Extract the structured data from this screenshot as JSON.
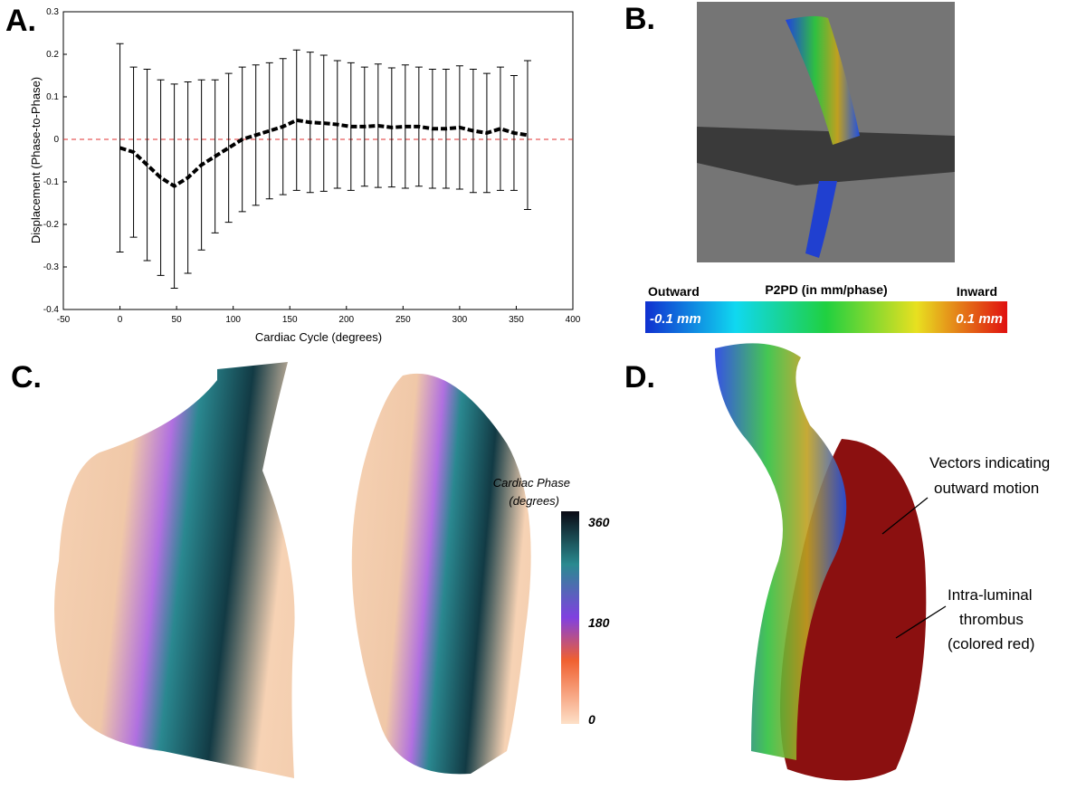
{
  "panel_labels": [
    "A.",
    "B.",
    "C.",
    "D."
  ],
  "chart_data": {
    "type": "line",
    "xlabel": "Cardiac Cycle (degrees)",
    "ylabel": "Displacement (Phase-to-Phase)",
    "x": [
      0,
      12,
      24,
      36,
      48,
      60,
      72,
      84,
      96,
      108,
      120,
      132,
      144,
      156,
      168,
      180,
      192,
      204,
      216,
      228,
      240,
      252,
      264,
      276,
      288,
      300,
      312,
      324,
      336,
      348,
      360
    ],
    "series": [
      {
        "color": "#000000",
        "values": [
          -0.02,
          -0.03,
          -0.06,
          -0.09,
          -0.11,
          -0.09,
          -0.06,
          -0.04,
          -0.02,
          0.0,
          0.01,
          0.02,
          0.03,
          0.045,
          0.04,
          0.038,
          0.035,
          0.03,
          0.03,
          0.032,
          0.028,
          0.03,
          0.03,
          0.025,
          0.025,
          0.028,
          0.02,
          0.015,
          0.025,
          0.015,
          0.01
        ],
        "errors": [
          0.245,
          0.2,
          0.225,
          0.23,
          0.24,
          0.225,
          0.2,
          0.18,
          0.175,
          0.17,
          0.165,
          0.16,
          0.16,
          0.165,
          0.165,
          0.16,
          0.15,
          0.15,
          0.14,
          0.145,
          0.14,
          0.145,
          0.14,
          0.14,
          0.14,
          0.145,
          0.145,
          0.14,
          0.145,
          0.135,
          0.175
        ]
      }
    ],
    "reference_line": {
      "value": 0,
      "color": "#e03030"
    },
    "xlim": [
      -50,
      400
    ],
    "xticks": [
      -50,
      0,
      50,
      100,
      150,
      200,
      250,
      300,
      350,
      400
    ],
    "ylim": [
      -0.4,
      0.3
    ],
    "yticks": [
      -0.4,
      -0.3,
      -0.2,
      -0.1,
      0,
      0.1,
      0.2,
      0.3
    ]
  },
  "colorbar_b": {
    "title": "P2PD (in mm/phase)",
    "left": "Outward",
    "right": "Inward",
    "min_label": "-0.1 mm",
    "max_label": "0.1 mm"
  },
  "colorbar_c": {
    "title": [
      "Cardiac Phase",
      "(degrees)"
    ],
    "ticks": [
      360,
      180,
      0
    ]
  },
  "annotations_d": [
    [
      "Vectors indicating",
      "outward motion"
    ],
    [
      "Intra-luminal",
      "thrombus",
      "(colored red)"
    ]
  ]
}
